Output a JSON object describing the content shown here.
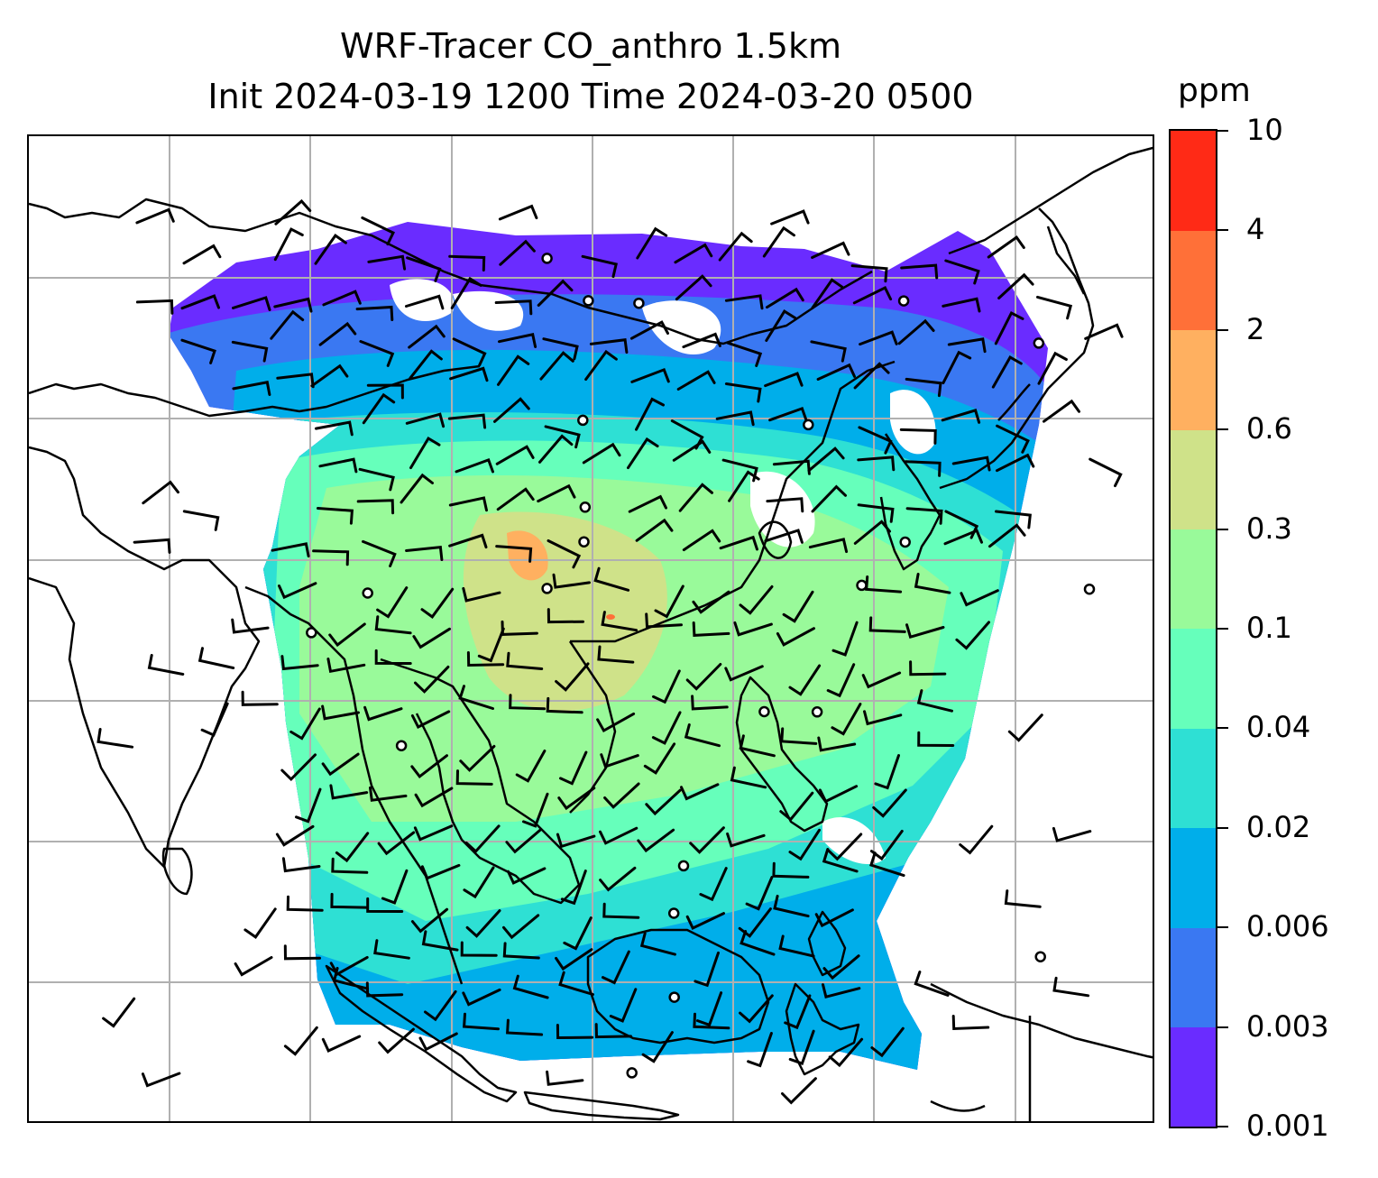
{
  "title": {
    "line1": "WRF-Tracer CO_anthro 1.5km",
    "line2": "Init 2024-03-19 1200 Time 2024-03-20 0500"
  },
  "colorbar": {
    "unit": "ppm",
    "levels": [
      "0.001",
      "0.003",
      "0.006",
      "0.02",
      "0.04",
      "0.1",
      "0.3",
      "0.6",
      "2",
      "4",
      "10"
    ],
    "colors": [
      "#6a2cff",
      "#3a78f2",
      "#00aeea",
      "#2ee0d4",
      "#66ffbb",
      "#99fa9a",
      "#cfe289",
      "#ffb060",
      "#ff7038",
      "#ff2a16"
    ]
  },
  "map": {
    "field": "CO_anthro",
    "gridlines": true,
    "vectors": "wind barbs",
    "colors": {
      "coastline": "#000000",
      "grid": "#b0b0b0",
      "no_data": "#ffffff"
    }
  }
}
